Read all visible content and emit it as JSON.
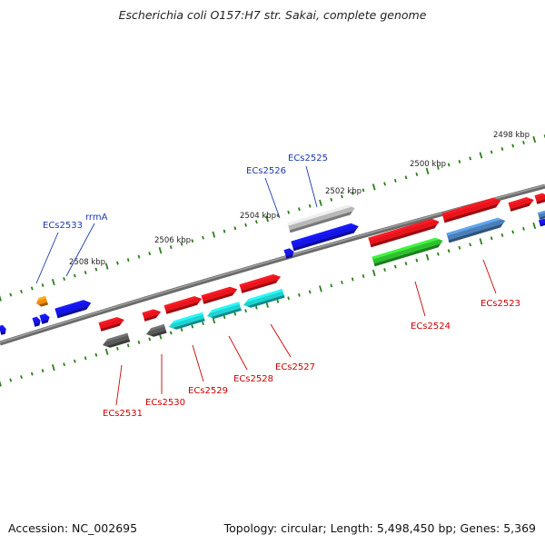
{
  "title": "Escherichia coli O157:H7 str. Sakai, complete genome",
  "footer": {
    "accession": "Accession: NC_002695",
    "summary": "Topology: circular; Length: 5,498,450 bp; Genes: 5,369"
  },
  "colors": {
    "backbone": "#7a7a7a",
    "tick": "#2e7d1e",
    "label_red": "#cc0000",
    "label_blue": "#1a3aa8",
    "red": "#e8141c",
    "blue": "#1414e8",
    "cyan": "#1fd3d3",
    "green": "#2fbf2f",
    "steelblue": "#4a7fb8",
    "darkgray": "#5a5a5a",
    "lightgray": "#b8b8b8",
    "orange": "#f08a10"
  },
  "kbp_labels": [
    "2498 kbp",
    "2500 kbp",
    "2502 kbp",
    "2504 kbp",
    "2506 kbp",
    "2508 kbp"
  ],
  "labels": {
    "ecs2531": "ECs2531",
    "ecs2530": "ECs2530",
    "ecs2529": "ECs2529",
    "ecs2528": "ECs2528",
    "ecs2527": "ECs2527",
    "ecs2524": "ECs2524",
    "ecs2523": "ECs2523",
    "ecs2526": "ECs2526",
    "ecs2525": "ECs2525",
    "ecs2533": "ECs2533",
    "rrma": "rrmA"
  }
}
